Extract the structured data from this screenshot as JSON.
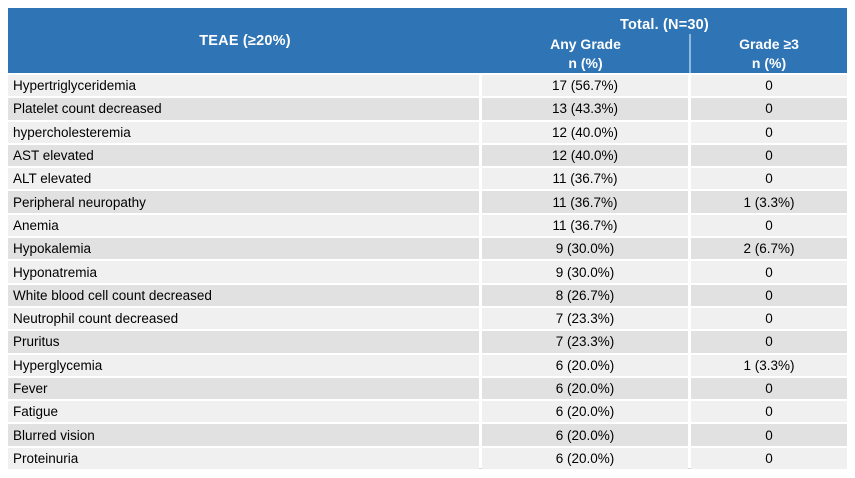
{
  "table": {
    "header": {
      "teae_label": "TEAE (≥20%)",
      "total_label": "Total. (N=30)",
      "any_grade_label": "Any Grade",
      "any_grade_sub": "n (%)",
      "grade3_label": "Grade ≥3",
      "grade3_sub": "n (%)"
    },
    "rows": [
      {
        "teae": "Hypertriglyceridemia",
        "any_grade": "17 (56.7%)",
        "grade3": "0"
      },
      {
        "teae": "Platelet count decreased",
        "any_grade": "13 (43.3%)",
        "grade3": "0"
      },
      {
        "teae": "hypercholesteremia",
        "any_grade": "12 (40.0%)",
        "grade3": "0"
      },
      {
        "teae": "AST elevated",
        "any_grade": "12 (40.0%)",
        "grade3": "0"
      },
      {
        "teae": "ALT elevated",
        "any_grade": "11 (36.7%)",
        "grade3": "0"
      },
      {
        "teae": "Peripheral neuropathy",
        "any_grade": "11 (36.7%)",
        "grade3": "1 (3.3%)"
      },
      {
        "teae": "Anemia",
        "any_grade": "11 (36.7%)",
        "grade3": "0"
      },
      {
        "teae": "Hypokalemia",
        "any_grade": "9 (30.0%)",
        "grade3": "2 (6.7%)"
      },
      {
        "teae": "Hyponatremia",
        "any_grade": "9 (30.0%)",
        "grade3": "0"
      },
      {
        "teae": "White blood cell count decreased",
        "any_grade": "8 (26.7%)",
        "grade3": "0"
      },
      {
        "teae": "Neutrophil count decreased",
        "any_grade": "7 (23.3%)",
        "grade3": "0"
      },
      {
        "teae": "Pruritus",
        "any_grade": "7 (23.3%)",
        "grade3": "0"
      },
      {
        "teae": "Hyperglycemia",
        "any_grade": "6 (20.0%)",
        "grade3": "1 (3.3%)"
      },
      {
        "teae": "Fever",
        "any_grade": "6 (20.0%)",
        "grade3": "0"
      },
      {
        "teae": "Fatigue",
        "any_grade": "6 (20.0%)",
        "grade3": "0"
      },
      {
        "teae": "Blurred vision",
        "any_grade": "6 (20.0%)",
        "grade3": "0"
      },
      {
        "teae": "Proteinuria",
        "any_grade": "6 (20.0%)",
        "grade3": "0"
      }
    ],
    "colors": {
      "header_bg": "#2f74b5",
      "header_text": "#ffffff",
      "header_divider": "#8fb8dd",
      "row_odd_bg": "#f0f0f0",
      "row_even_bg": "#e1e1e1",
      "body_text": "#000000"
    }
  }
}
